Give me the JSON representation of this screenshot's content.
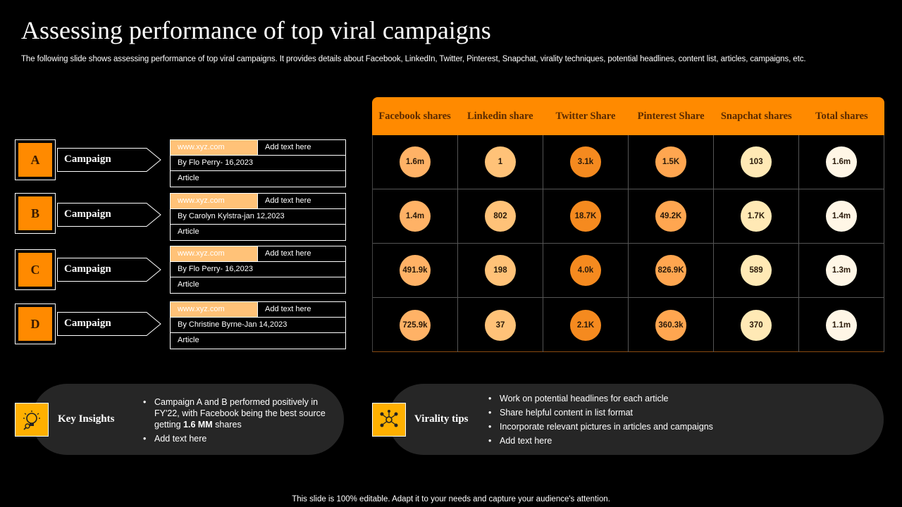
{
  "title": "Assessing performance of top viral campaigns",
  "subtitle": "The following slide shows assessing performance of top viral campaigns. It provides details about Facebook, LinkedIn, Twitter, Pinterest, Snapchat, virality techniques, potential headlines, content list, articles, campaigns, etc.",
  "campaigns": [
    {
      "letter": "A",
      "label": "Campaign",
      "url": "www.xyz.com",
      "add_text": "Add text here",
      "byline": "By Flo Perry- 16,2023",
      "type": "Article"
    },
    {
      "letter": "B",
      "label": "Campaign",
      "url": "www.xyz.com",
      "add_text": "Add text here",
      "byline": "By Carolyn Kylstra-jan 12,2023",
      "type": "Article"
    },
    {
      "letter": "C",
      "label": "Campaign",
      "url": "www.xyz.com",
      "add_text": "Add text here",
      "byline": "By Flo Perry- 16,2023",
      "type": "Article"
    },
    {
      "letter": "D",
      "label": "Campaign",
      "url": "www.xyz.com",
      "add_text": "Add text here",
      "byline": "By Christine Byrne-Jan 14,2023",
      "type": "Article"
    }
  ],
  "table": {
    "headers": [
      "Facebook shares",
      "Linkedin share",
      "Twitter Share",
      "Pinterest Share",
      "Snapchat shares",
      "Total shares"
    ],
    "rows": [
      [
        "1.6m",
        "1",
        "3.1k",
        "1.5K",
        "103",
        "1.6m"
      ],
      [
        "1.4m",
        "802",
        "18.7K",
        "49.2K",
        "1.7K",
        "1.4m"
      ],
      [
        "491.9k",
        "198",
        "4.0k",
        "826.9K",
        "589",
        "1.3m"
      ],
      [
        "725.9k",
        "37",
        "2.1K",
        "360.3k",
        "370",
        "1.1m"
      ]
    ]
  },
  "insights": {
    "title": "Key Insights",
    "bullets": [
      "Campaign A and B performed positively in FY'22, with Facebook being the best source getting ",
      "Add text here"
    ],
    "highlight": "1.6 MM",
    "highlight_suffix": " shares"
  },
  "virality": {
    "title": "Virality tips",
    "bullets": [
      "Work on potential headlines for each article",
      "Share helpful content in list format",
      "Incorporate relevant pictures in articles and campaigns",
      "Add text here"
    ]
  },
  "footer": "This slide is 100% editable. Adapt it to your needs and capture your audience's attention.",
  "colors": {
    "accent": "#FF8A00",
    "background": "#000000",
    "panel": "#262626",
    "icon_bg": "#FFB000"
  }
}
